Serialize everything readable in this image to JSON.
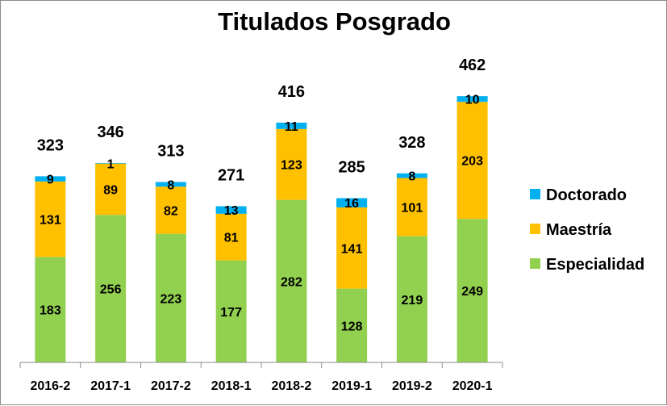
{
  "chart_data": {
    "type": "bar",
    "stacked": true,
    "title": "Titulados Posgrado",
    "categories": [
      "2016-2",
      "2017-1",
      "2017-2",
      "2018-1",
      "2018-2",
      "2019-1",
      "2019-2",
      "2020-1"
    ],
    "series": [
      {
        "name": "Especialidad",
        "color": "#92d050",
        "values": [
          183,
          256,
          223,
          177,
          282,
          128,
          219,
          249
        ]
      },
      {
        "name": "Maestría",
        "color": "#ffc000",
        "values": [
          131,
          89,
          82,
          81,
          123,
          141,
          101,
          203
        ]
      },
      {
        "name": "Doctorado",
        "color": "#00b0f0",
        "values": [
          9,
          1,
          8,
          13,
          11,
          16,
          8,
          10
        ]
      }
    ],
    "totals": [
      323,
      346,
      313,
      271,
      416,
      285,
      328,
      462
    ],
    "ylim": [
      0,
      500
    ],
    "grid": false,
    "legend": "right",
    "legend_order": [
      "Doctorado",
      "Maestría",
      "Especialidad"
    ]
  }
}
